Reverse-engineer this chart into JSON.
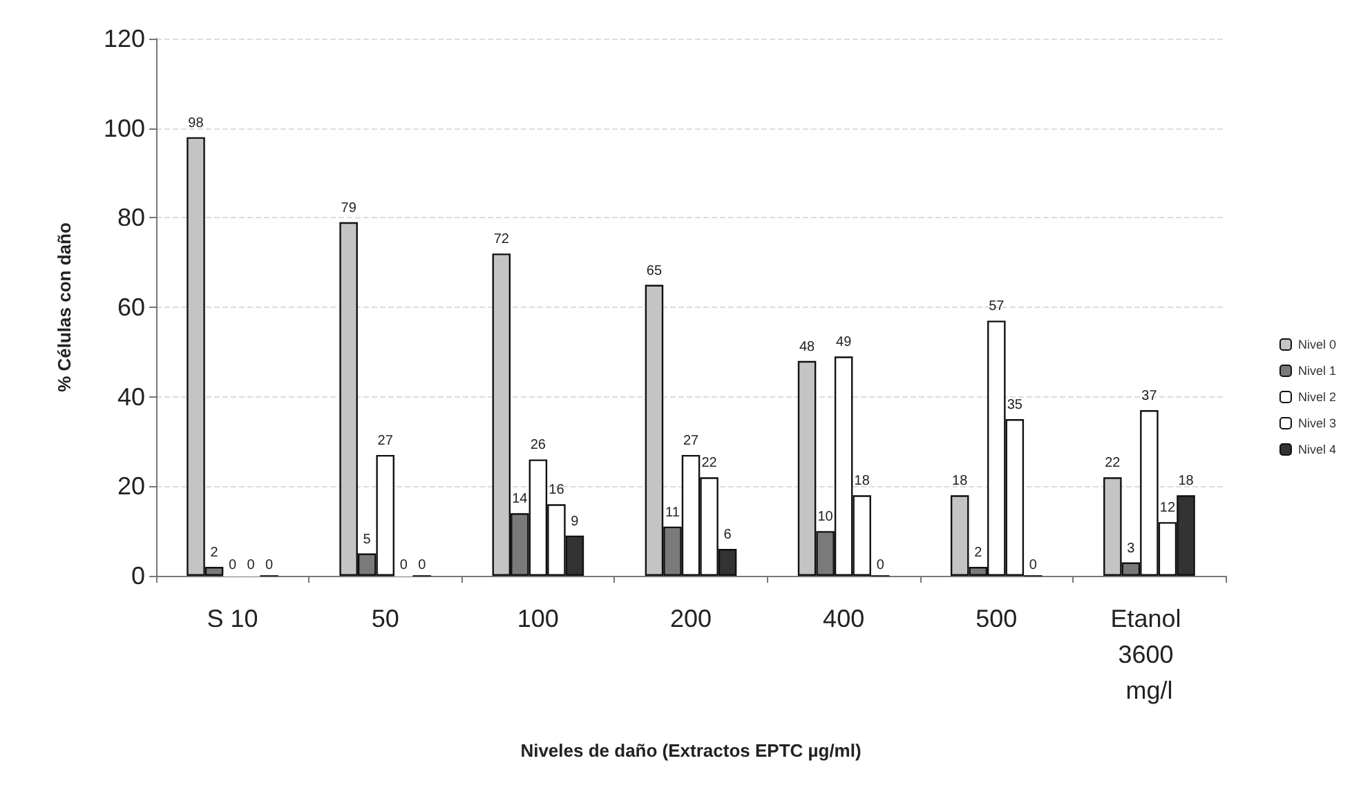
{
  "chart_data": {
    "type": "bar",
    "xlabel": "Niveles de daño (Extractos EPTC µg/ml)",
    "ylabel": "% Células con daño",
    "categories": [
      "S 10",
      "50",
      "100",
      "200",
      "400",
      "500",
      "Etanol 3600 mg/l"
    ],
    "series": [
      {
        "name": "Nivel 0",
        "color": "#c4c4c4",
        "values": [
          98,
          79,
          72,
          65,
          48,
          18,
          22
        ]
      },
      {
        "name": "Nivel 1",
        "color": "#7a7a7a",
        "values": [
          2,
          5,
          14,
          11,
          10,
          2,
          3
        ]
      },
      {
        "name": "Nivel 2",
        "color": "#ffffff",
        "values": [
          0,
          27,
          26,
          27,
          49,
          57,
          37
        ]
      },
      {
        "name": "Nivel 3",
        "color": "#ffffff",
        "values": [
          0,
          0,
          16,
          22,
          18,
          35,
          12
        ]
      },
      {
        "name": "Nivel 4",
        "color": "#333333",
        "values": [
          0,
          0,
          9,
          6,
          0,
          0,
          18
        ]
      }
    ],
    "ylim": [
      0,
      120
    ],
    "yticks": [
      0,
      20,
      40,
      60,
      80,
      100,
      120
    ],
    "grid": "y",
    "legend": "right",
    "data_labels": true
  }
}
